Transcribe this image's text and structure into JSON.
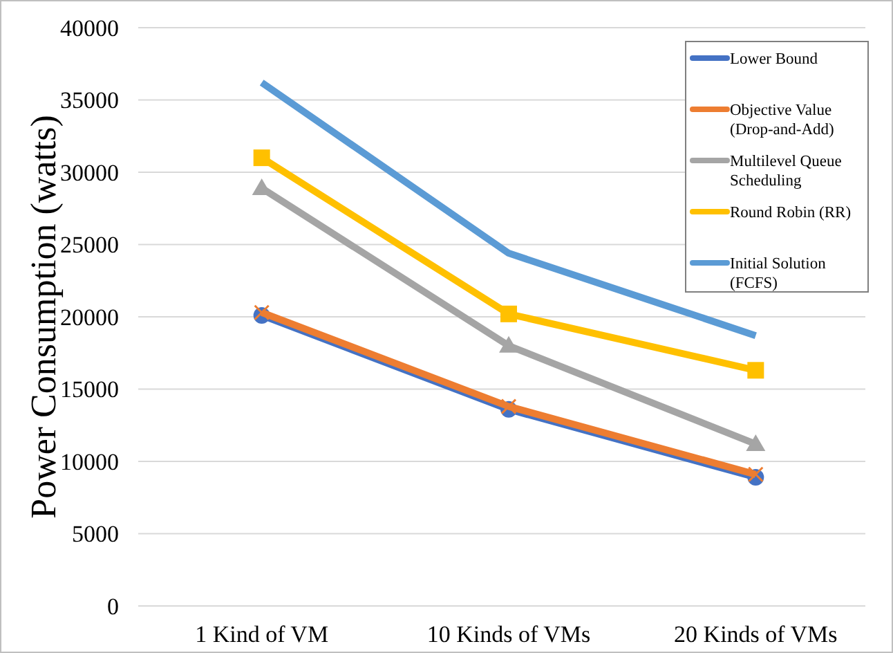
{
  "chart_data": {
    "type": "line",
    "ylabel": "Power Consumption (watts)",
    "categories": [
      "1 Kind of VM",
      "10 Kinds of VMs",
      "20 Kinds of VMs"
    ],
    "series": [
      {
        "name": "Lower Bound",
        "color": "#4472c4",
        "marker": "circle",
        "values": [
          20100,
          13600,
          8900
        ]
      },
      {
        "name": "Objective Value (Drop-and-Add)",
        "color": "#ed7d31",
        "marker": "cross",
        "values": [
          20300,
          13800,
          9100
        ]
      },
      {
        "name": "Multilevel Queue Scheduling",
        "color": "#a5a5a5",
        "marker": "triangle",
        "values": [
          28900,
          18000,
          11200
        ]
      },
      {
        "name": "Round Robin (RR)",
        "color": "#ffc000",
        "marker": "square",
        "values": [
          31000,
          20200,
          16300
        ]
      },
      {
        "name": "Initial Solution (FCFS)",
        "color": "#5b9bd5",
        "marker": "none",
        "values": [
          36200,
          24400,
          18700
        ]
      }
    ],
    "ylim": [
      0,
      40000
    ],
    "yticks": [
      0,
      5000,
      10000,
      15000,
      20000,
      25000,
      30000,
      35000,
      40000
    ],
    "grid": "y",
    "legend": "top right",
    "line_style": "solid"
  }
}
